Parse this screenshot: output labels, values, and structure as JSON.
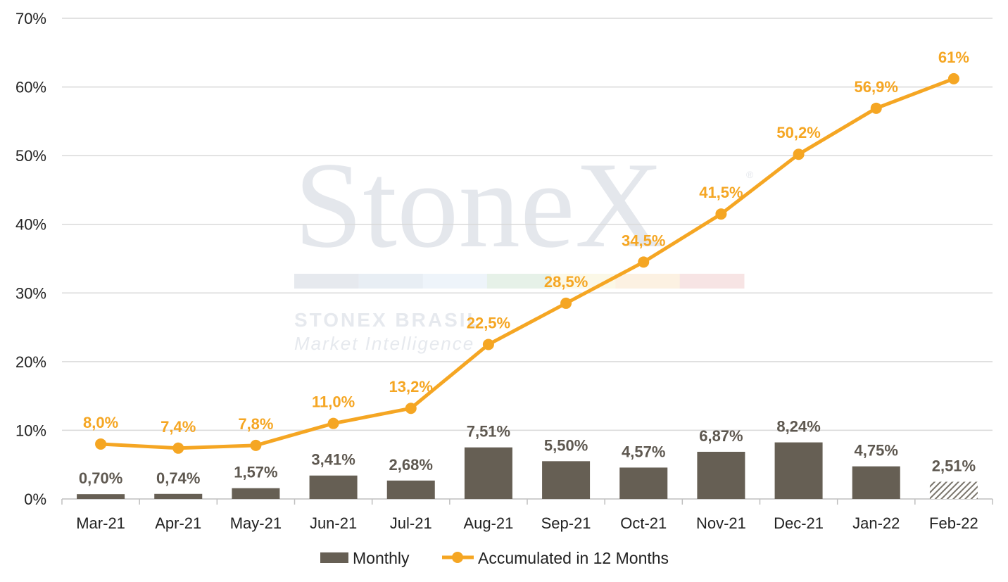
{
  "watermark": {
    "brand": "StoneX",
    "registered": "®",
    "line1": "STONEX BRASIL",
    "line2": "Market Intelligence",
    "stripe_colors": [
      "#e6e9ee",
      "#e8eef4",
      "#eef4fa",
      "#e6f1e8",
      "#fbf8e7",
      "#fcf1e2",
      "#f7e4e4"
    ]
  },
  "colors": {
    "bar": "#665f54",
    "bar_hatched": "#7a756c",
    "line": "#f5a623",
    "bar_label": "#5e5850",
    "line_label": "#f5a623",
    "grid": "#d9d9d9"
  },
  "chart_data": {
    "type": "bar",
    "categories": [
      "Mar-21",
      "Apr-21",
      "May-21",
      "Jun-21",
      "Jul-21",
      "Aug-21",
      "Sep-21",
      "Oct-21",
      "Nov-21",
      "Dec-21",
      "Jan-22",
      "Feb-22"
    ],
    "series": [
      {
        "name": "Monthly",
        "type": "bar",
        "values": [
          0.7,
          0.74,
          1.57,
          3.41,
          2.68,
          7.51,
          5.5,
          4.57,
          6.87,
          8.24,
          4.75,
          2.51
        ],
        "labels": [
          "0,70%",
          "0,74%",
          "1,57%",
          "3,41%",
          "2,68%",
          "7,51%",
          "5,50%",
          "4,57%",
          "6,87%",
          "8,24%",
          "4,75%",
          "2,51%"
        ],
        "hatched": [
          false,
          false,
          false,
          false,
          false,
          false,
          false,
          false,
          false,
          false,
          false,
          true
        ]
      },
      {
        "name": "Accumulated in 12 Months",
        "type": "line",
        "values": [
          8.0,
          7.4,
          7.8,
          11.0,
          13.2,
          22.5,
          28.5,
          34.5,
          41.5,
          50.2,
          56.9,
          61.2
        ],
        "labels": [
          "8,0%",
          "7,4%",
          "7,8%",
          "11,0%",
          "13,2%",
          "22,5%",
          "28,5%",
          "34,5%",
          "41,5%",
          "50,2%",
          "56,9%",
          "61%"
        ]
      }
    ],
    "y_ticks": [
      "0%",
      "10%",
      "20%",
      "30%",
      "40%",
      "50%",
      "60%",
      "70%"
    ],
    "ylim": [
      0,
      70
    ],
    "grid": true,
    "legend_position": "bottom"
  }
}
